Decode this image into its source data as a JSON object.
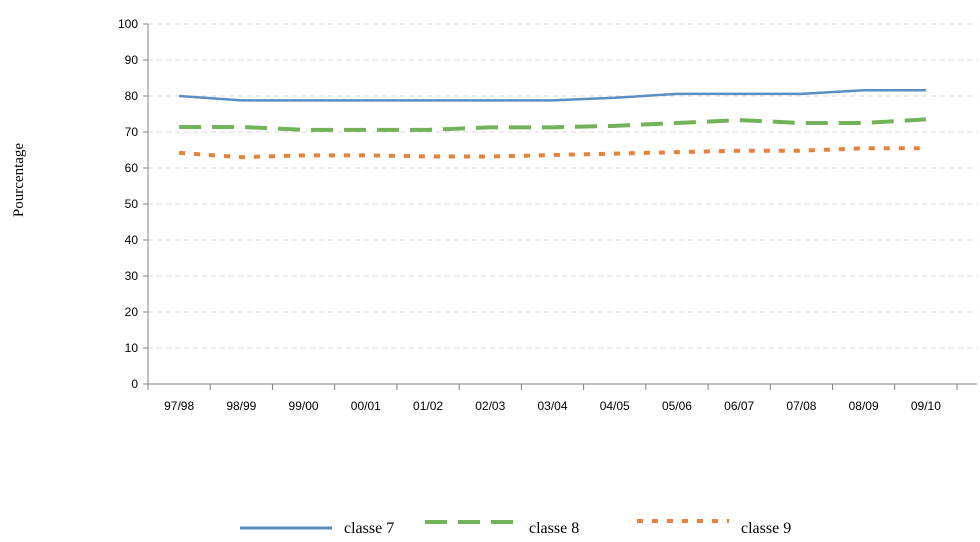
{
  "chart_data": {
    "type": "line",
    "title": "",
    "xlabel": "",
    "ylabel": "Pourcentage",
    "ylim": [
      0,
      100
    ],
    "yticks": [
      0,
      10,
      20,
      30,
      40,
      50,
      60,
      70,
      80,
      90,
      100
    ],
    "grid": true,
    "legend_position": "bottom",
    "categories": [
      "97/98",
      "98/99",
      "99/00",
      "00/01",
      "01/02",
      "02/03",
      "03/04",
      "04/05",
      "05/06",
      "06/07",
      "07/08",
      "08/09",
      "09/10"
    ],
    "series": [
      {
        "name": "classe 7",
        "color": "#5b8ec3",
        "style": "solid",
        "values": [
          80,
          78.8,
          78.8,
          78.8,
          78.8,
          78.8,
          78.8,
          79.5,
          80.6,
          80.6,
          80.6,
          81.6,
          81.6
        ]
      },
      {
        "name": "classe 8",
        "color": "#72b259",
        "style": "dashed",
        "values": [
          71.4,
          71.4,
          70.6,
          70.6,
          70.6,
          71.3,
          71.3,
          71.7,
          72.5,
          73.3,
          72.5,
          72.5,
          73.5
        ]
      },
      {
        "name": "classe 9",
        "color": "#e8823a",
        "style": "dotted",
        "values": [
          64.2,
          63,
          63.5,
          63.5,
          63.2,
          63.2,
          63.6,
          64,
          64.4,
          64.8,
          64.8,
          65.5,
          65.5
        ]
      }
    ]
  }
}
